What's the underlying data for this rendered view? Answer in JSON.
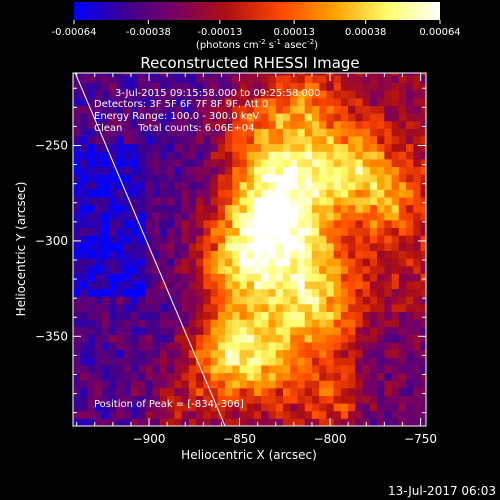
{
  "colorbar": {
    "tick_labels": [
      "-0.00064",
      "-0.00038",
      "-0.00013",
      "0.00013",
      "0.00038",
      "0.00064"
    ],
    "tick_values": [
      -0.00064,
      -0.00038,
      -0.00013,
      0.00013,
      0.00038,
      0.00064
    ],
    "unit_main": "(photons cm",
    "unit_exp1": "-2",
    "unit_mid": " s",
    "unit_exp2": "-1",
    "unit_tail": " asec",
    "unit_exp3": "-2",
    "unit_close": ")",
    "range": [
      -0.00064,
      0.00064
    ],
    "colormap_stops": [
      "#0000ff",
      "#3c0090",
      "#7a0060",
      "#b01010",
      "#ff4a00",
      "#ffa000",
      "#ffff70",
      "#ffffff"
    ]
  },
  "annotations": {
    "time_range": "3-Jul-2015 09:15:58.000 to 09:25:58.000",
    "detectors": "Detectors: 3F 5F 6F 7F 8F 9F, Att 0",
    "energy": "Energy Range: 100.0 - 300.0 keV",
    "clean": "Clean     Total counts: 6.06E+04",
    "peak": "Position of Peak = [-834,-306]"
  },
  "footer_date": "13-Jul-2017 06:03",
  "chart_data": {
    "type": "heatmap",
    "title": "Reconstructed RHESSI Image",
    "xlabel": "Heliocentric X (arcsec)",
    "ylabel": "Heliocentric Y (arcsec)",
    "xlim": [
      -942,
      -747
    ],
    "ylim": [
      -397,
      -212
    ],
    "x_ticks": [
      -900,
      -850,
      -800,
      -750
    ],
    "x_tick_labels": [
      "−900",
      "−850",
      "−800",
      "−750"
    ],
    "y_ticks": [
      -250,
      -300,
      -350
    ],
    "y_tick_labels": [
      "−250",
      "−300",
      "−350"
    ],
    "peak_position": [
      -834,
      -306
    ],
    "limb_line": [
      [
        -943,
        -207
      ],
      [
        -858,
        -397
      ]
    ],
    "pixel_size_arcsec": 4
  }
}
